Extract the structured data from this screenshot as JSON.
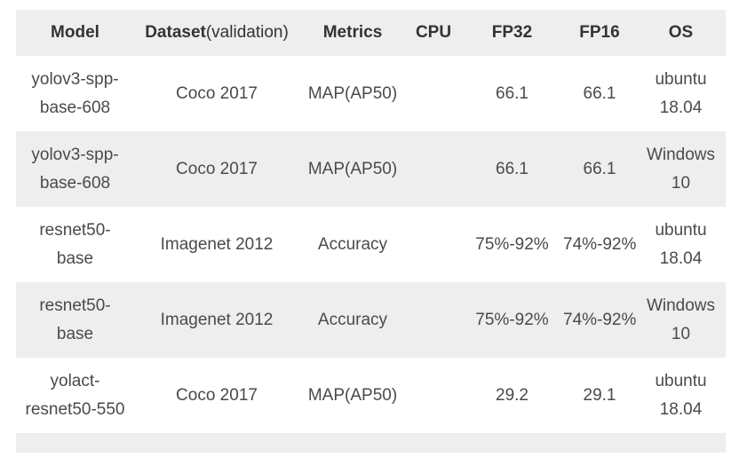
{
  "table": {
    "headers": {
      "model": "Model",
      "dataset_bold": "Dataset",
      "dataset_light": "(validation)",
      "metrics": "Metrics",
      "cpu": "CPU",
      "fp32": "FP32",
      "fp16": "FP16",
      "os": "OS"
    },
    "rows": [
      {
        "model_line1": "yolov3-spp-",
        "model_line2": "base-608",
        "dataset": "Coco 2017",
        "metrics": "MAP(AP50)",
        "cpu": "",
        "fp32": "66.1",
        "fp16": "66.1",
        "os_line1": "ubuntu",
        "os_line2": "18.04"
      },
      {
        "model_line1": "yolov3-spp-",
        "model_line2": "base-608",
        "dataset": "Coco 2017",
        "metrics": "MAP(AP50)",
        "cpu": "",
        "fp32": "66.1",
        "fp16": "66.1",
        "os_line1": "Windows",
        "os_line2": "10"
      },
      {
        "model_line1": "resnet50-",
        "model_line2": "base",
        "dataset": "Imagenet 2012",
        "metrics": "Accuracy",
        "cpu": "",
        "fp32": "75%-92%",
        "fp16": "74%-92%",
        "os_line1": "ubuntu",
        "os_line2": "18.04"
      },
      {
        "model_line1": "resnet50-",
        "model_line2": "base",
        "dataset": "Imagenet 2012",
        "metrics": "Accuracy",
        "cpu": "",
        "fp32": "75%-92%",
        "fp16": "74%-92%",
        "os_line1": "Windows",
        "os_line2": "10"
      },
      {
        "model_line1": "yolact-",
        "model_line2": "resnet50-550",
        "dataset": "Coco 2017",
        "metrics": "MAP(AP50)",
        "cpu": "",
        "fp32": "29.2",
        "fp16": "29.1",
        "os_line1": "ubuntu",
        "os_line2": "18.04"
      }
    ]
  }
}
